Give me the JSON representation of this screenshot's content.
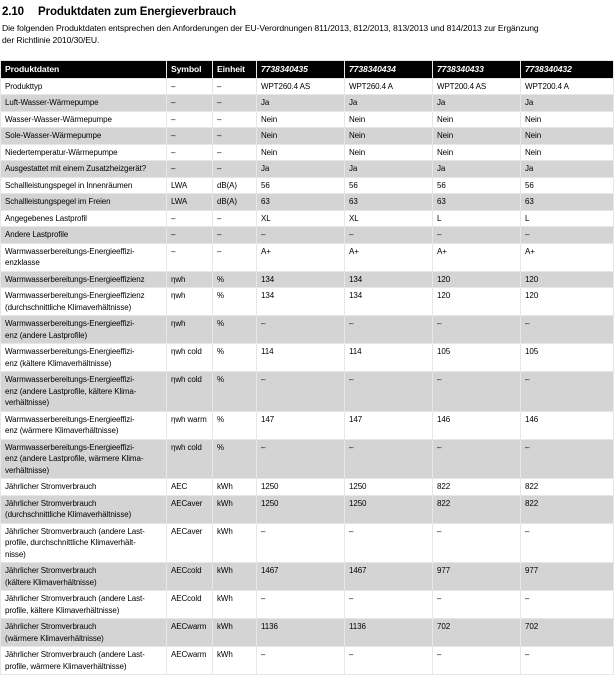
{
  "header": {
    "section_number": "2.10",
    "title": "Produktdaten zum Energieverbrauch"
  },
  "intro": "Die folgenden Produktdaten entsprechen den Anforderungen der EU-Verordnungen 811/2013, 812/2013, 813/2013 und 814/2013 zur Ergänzung\nder Richtlinie 2010/30/EU.",
  "colors": {
    "table_header_bg": "#000000",
    "table_header_text": "#ffffff",
    "row_alt_bg": "#d4d4d4",
    "grid_line": "#e7e7e7"
  },
  "table": {
    "columns": [
      "Produktdaten",
      "Symbol",
      "Einheit",
      "7738340435",
      "7738340434",
      "7738340433",
      "7738340432"
    ],
    "rows": [
      {
        "label": "Produkttyp",
        "symbol": "–",
        "unit": "–",
        "values": [
          "WPT260.4 AS",
          "WPT260.4 A",
          "WPT200.4 AS",
          "WPT200.4 A"
        ]
      },
      {
        "label": "Luft-Wasser-Wärmepumpe",
        "symbol": "–",
        "unit": "–",
        "values": [
          "Ja",
          "Ja",
          "Ja",
          "Ja"
        ]
      },
      {
        "label": "Wasser-Wasser-Wärmepumpe",
        "symbol": "–",
        "unit": "–",
        "values": [
          "Nein",
          "Nein",
          "Nein",
          "Nein"
        ]
      },
      {
        "label": "Sole-Wasser-Wärmepumpe",
        "symbol": "–",
        "unit": "–",
        "values": [
          "Nein",
          "Nein",
          "Nein",
          "Nein"
        ]
      },
      {
        "label": "Niedertemperatur-Wärmepumpe",
        "symbol": "–",
        "unit": "–",
        "values": [
          "Nein",
          "Nein",
          "Nein",
          "Nein"
        ]
      },
      {
        "label": "Ausgestattet mit einem Zusatzheizgerät?",
        "symbol": "–",
        "unit": "–",
        "values": [
          "Ja",
          "Ja",
          "Ja",
          "Ja"
        ]
      },
      {
        "label": "Schallleistungspegel in Innenräumen",
        "symbol": "LWA",
        "unit": "dB(A)",
        "values": [
          "56",
          "56",
          "56",
          "56"
        ]
      },
      {
        "label": "Schallleistungspegel im Freien",
        "symbol": "LWA",
        "unit": "dB(A)",
        "values": [
          "63",
          "63",
          "63",
          "63"
        ]
      },
      {
        "label": "Angegebenes Lastprofil",
        "symbol": "–",
        "unit": "–",
        "values": [
          "XL",
          "XL",
          "L",
          "L"
        ]
      },
      {
        "label": "Andere Lastprofile",
        "symbol": "–",
        "unit": "–",
        "values": [
          "–",
          "–",
          "–",
          "–"
        ]
      },
      {
        "label": "Warmwasserbereitungs-Energieeffizi-\nenzklasse",
        "symbol": "–",
        "unit": "–",
        "values": [
          "A+",
          "A+",
          "A+",
          "A+"
        ]
      },
      {
        "label": "Warmwasserbereitungs-Energieeffizienz",
        "symbol": "ηwh",
        "unit": "%",
        "values": [
          "134",
          "134",
          "120",
          "120"
        ]
      },
      {
        "label": "Warmwasserbereitungs-Energieeffizienz\n(durchschnittliche Klimaverhältnisse)",
        "symbol": "ηwh",
        "unit": "%",
        "values": [
          "134",
          "134",
          "120",
          "120"
        ]
      },
      {
        "label": "Warmwasserbereitungs-Energieeffizi-\nenz (andere Lastprofile)",
        "symbol": "ηwh",
        "unit": "%",
        "values": [
          "–",
          "–",
          "–",
          "–"
        ]
      },
      {
        "label": "Warmwasserbereitungs-Energieeffizi-\nenz (kältere Klimaverhältnisse)",
        "symbol": "ηwh cold",
        "unit": "%",
        "values": [
          "114",
          "114",
          "105",
          "105"
        ]
      },
      {
        "label": "Warmwasserbereitungs-Energieeffizi-\nenz (andere Lastprofile, kältere Klima-\nverhältnisse)",
        "symbol": "ηwh cold",
        "unit": "%",
        "values": [
          "–",
          "–",
          "–",
          "–"
        ]
      },
      {
        "label": "Warmwasserbereitungs-Energieeffizi-\nenz (wärmere Klimaverhältnisse)",
        "symbol": "ηwh warm",
        "unit": "%",
        "values": [
          "147",
          "147",
          "146",
          "146"
        ]
      },
      {
        "label": "Warmwasserbereitungs-Energieeffizi-\nenz (andere Lastprofile, wärmere Klima-\nverhältnisse)",
        "symbol": "ηwh cold",
        "unit": "%",
        "values": [
          "–",
          "–",
          "–",
          "–"
        ]
      },
      {
        "label": "Jährlicher Stromverbrauch",
        "symbol": "AEC",
        "unit": "kWh",
        "values": [
          "1250",
          "1250",
          "822",
          "822"
        ]
      },
      {
        "label": "Jährlicher Stromverbrauch\n(durchschnittliche Klimaverhältnisse)",
        "symbol": "AECaver",
        "unit": "kWh",
        "values": [
          "1250",
          "1250",
          "822",
          "822"
        ]
      },
      {
        "label": "Jährlicher Stromverbrauch (andere Last-\nprofile, durchschnittliche Klimaverhält-\nnisse)",
        "symbol": "AECaver",
        "unit": "kWh",
        "values": [
          "–",
          "–",
          "–",
          "–"
        ]
      },
      {
        "label": "Jährlicher Stromverbrauch\n(kältere Klimaverhältnisse)",
        "symbol": "AECcold",
        "unit": "kWh",
        "values": [
          "1467",
          "1467",
          "977",
          "977"
        ]
      },
      {
        "label": "Jährlicher Stromverbrauch (andere Last-\nprofile, kältere Klimaverhältnisse)",
        "symbol": "AECcold",
        "unit": "kWh",
        "values": [
          "–",
          "–",
          "–",
          "–"
        ]
      },
      {
        "label": "Jährlicher Stromverbrauch\n(wärmere Klimaverhältnisse)",
        "symbol": "AECwarm",
        "unit": "kWh",
        "values": [
          "1136",
          "1136",
          "702",
          "702"
        ]
      },
      {
        "label": "Jährlicher Stromverbrauch (andere Last-\nprofile, wärmere Klimaverhältnisse)",
        "symbol": "AECwarm",
        "unit": "kWh",
        "values": [
          "–",
          "–",
          "–",
          "–"
        ]
      }
    ]
  }
}
